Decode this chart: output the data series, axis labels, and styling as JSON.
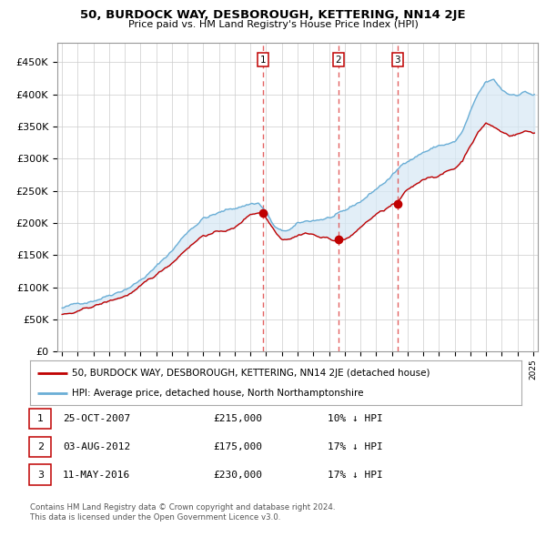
{
  "title": "50, BURDOCK WAY, DESBOROUGH, KETTERING, NN14 2JE",
  "subtitle": "Price paid vs. HM Land Registry's House Price Index (HPI)",
  "legend_line1": "50, BURDOCK WAY, DESBOROUGH, KETTERING, NN14 2JE (detached house)",
  "legend_line2": "HPI: Average price, detached house, North Northamptonshire",
  "footer1": "Contains HM Land Registry data © Crown copyright and database right 2024.",
  "footer2": "This data is licensed under the Open Government Licence v3.0.",
  "transactions": [
    {
      "num": 1,
      "date": "25-OCT-2007",
      "date_x": 2007.82,
      "price": 215000,
      "label": "£215,000",
      "pct": "10% ↓ HPI"
    },
    {
      "num": 2,
      "date": "03-AUG-2012",
      "date_x": 2012.59,
      "price": 175000,
      "label": "£175,000",
      "pct": "17% ↓ HPI"
    },
    {
      "num": 3,
      "date": "11-MAY-2016",
      "date_x": 2016.36,
      "price": 230000,
      "label": "£230,000",
      "pct": "17% ↓ HPI"
    }
  ],
  "hpi_color": "#6aaed6",
  "hpi_fill_color": "#d6e8f5",
  "price_color": "#c00000",
  "dashed_color": "#e05050",
  "background_color": "#ffffff",
  "grid_color": "#cccccc",
  "ylim": [
    0,
    480000
  ],
  "yticks": [
    0,
    50000,
    100000,
    150000,
    200000,
    250000,
    300000,
    350000,
    400000,
    450000
  ],
  "xlim_start": 1994.7,
  "xlim_end": 2025.3
}
